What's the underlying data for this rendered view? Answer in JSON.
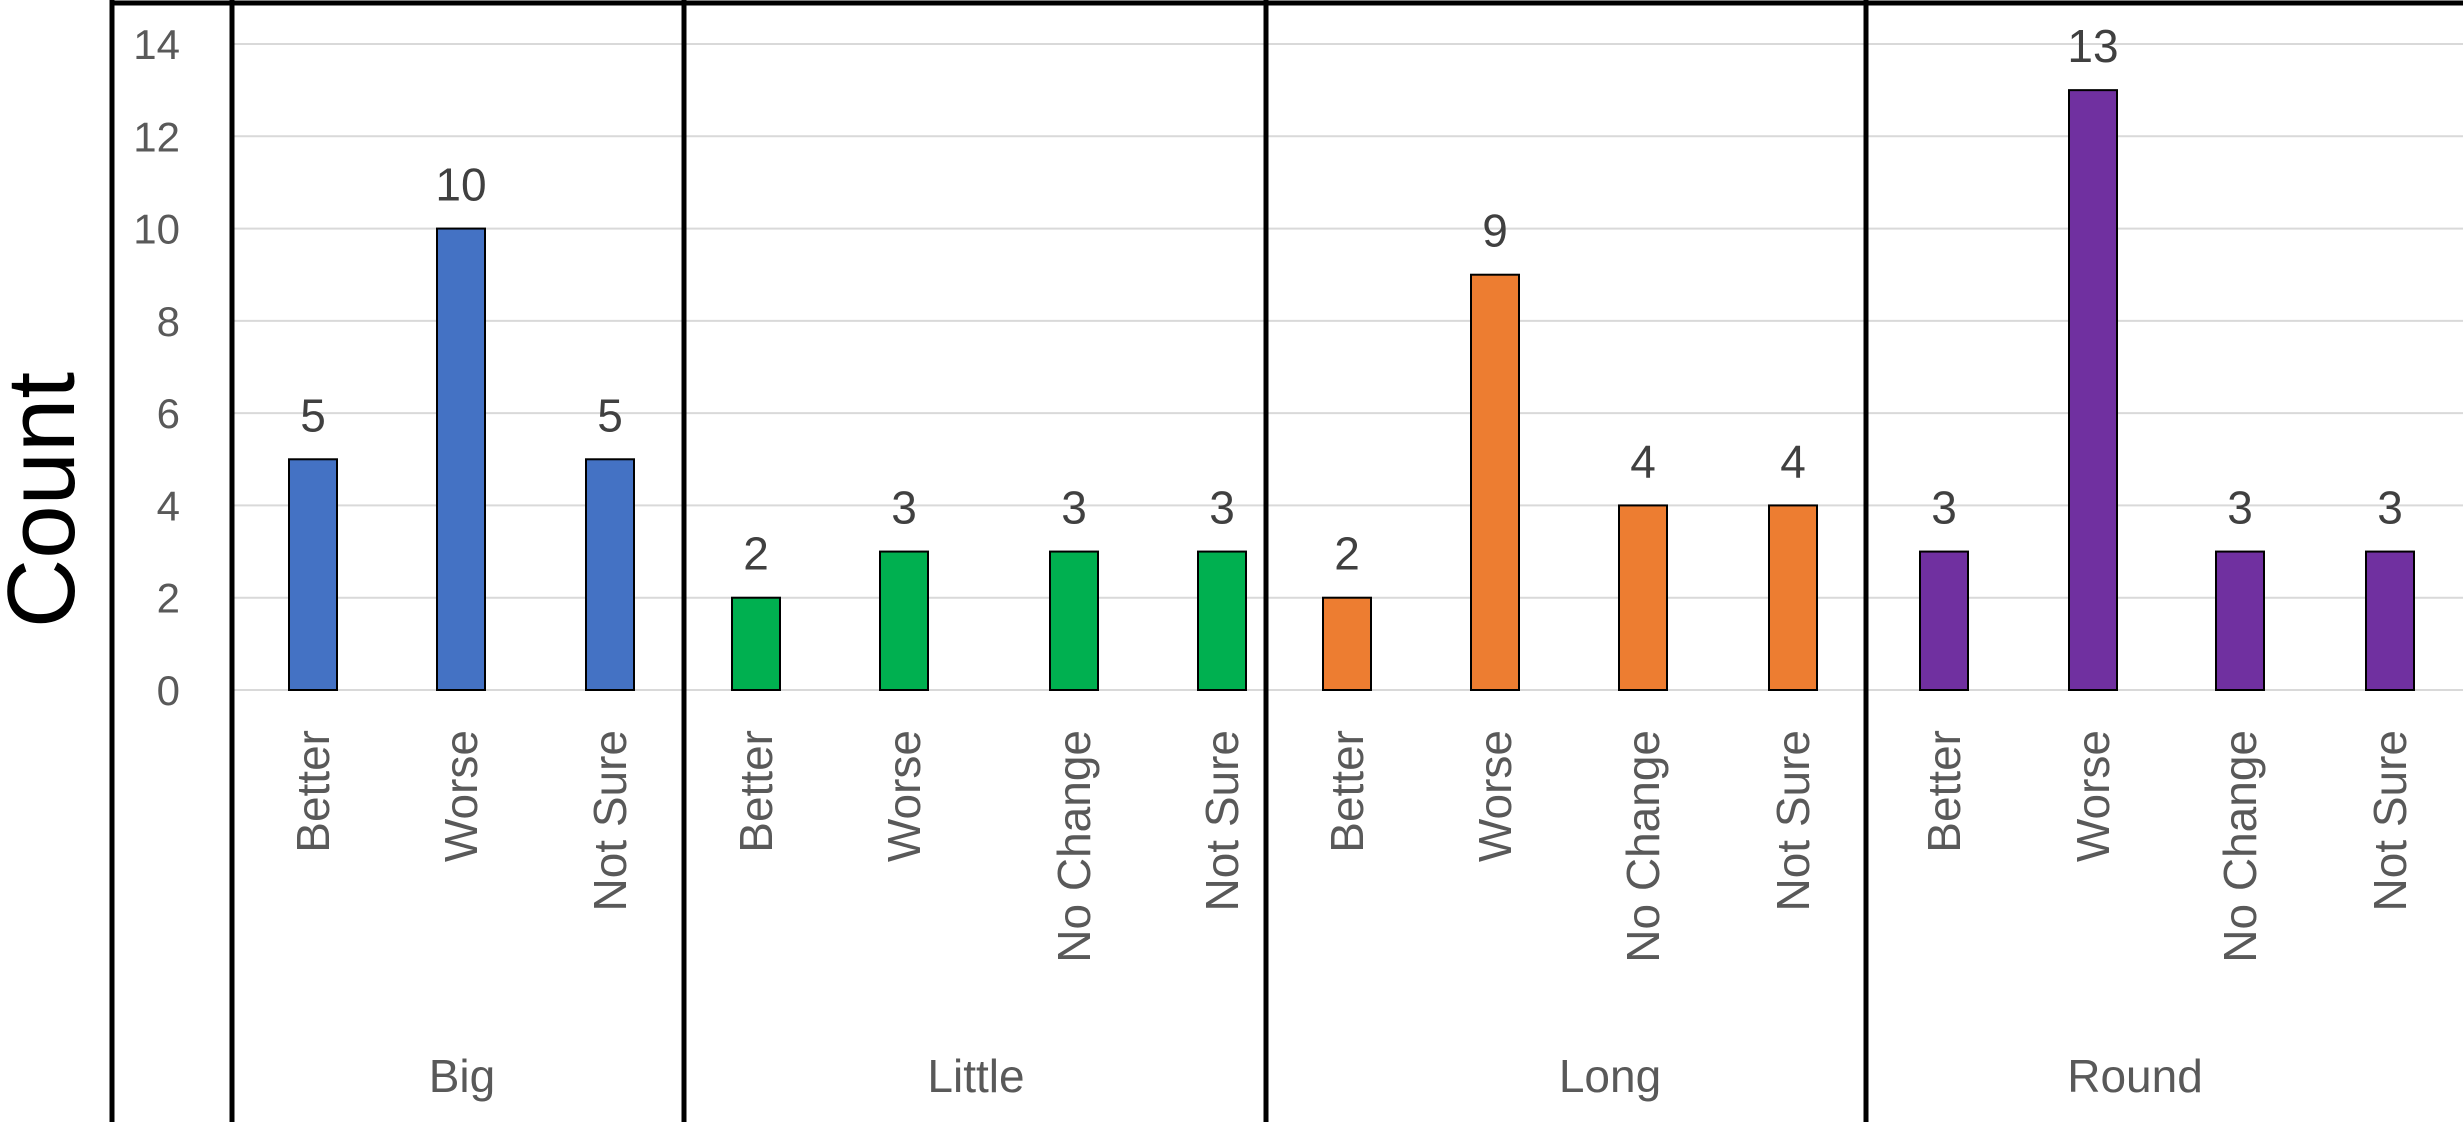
{
  "chart_data": {
    "type": "bar",
    "title": "",
    "ylabel": "Count",
    "ylim": [
      0,
      14
    ],
    "yticks": [
      "0",
      "2",
      "4",
      "6",
      "8",
      "10",
      "12",
      "14"
    ],
    "grid": true,
    "groups": [
      {
        "name": "Big",
        "color": "#4472C4",
        "categories": [
          "Better",
          "Worse",
          "Not Sure"
        ],
        "values": [
          5,
          10,
          5
        ]
      },
      {
        "name": "Little",
        "color": "#00B050",
        "categories": [
          "Better",
          "Worse",
          "No Change",
          "Not Sure"
        ],
        "values": [
          2,
          3,
          3,
          3
        ]
      },
      {
        "name": "Long",
        "color": "#ED7D31",
        "categories": [
          "Better",
          "Worse",
          "No Change",
          "Not Sure"
        ],
        "values": [
          2,
          9,
          4,
          4
        ]
      },
      {
        "name": "Round",
        "color": "#7030A0",
        "categories": [
          "Better",
          "Worse",
          "No Change",
          "Not Sure"
        ],
        "values": [
          3,
          13,
          3,
          3
        ]
      }
    ]
  }
}
